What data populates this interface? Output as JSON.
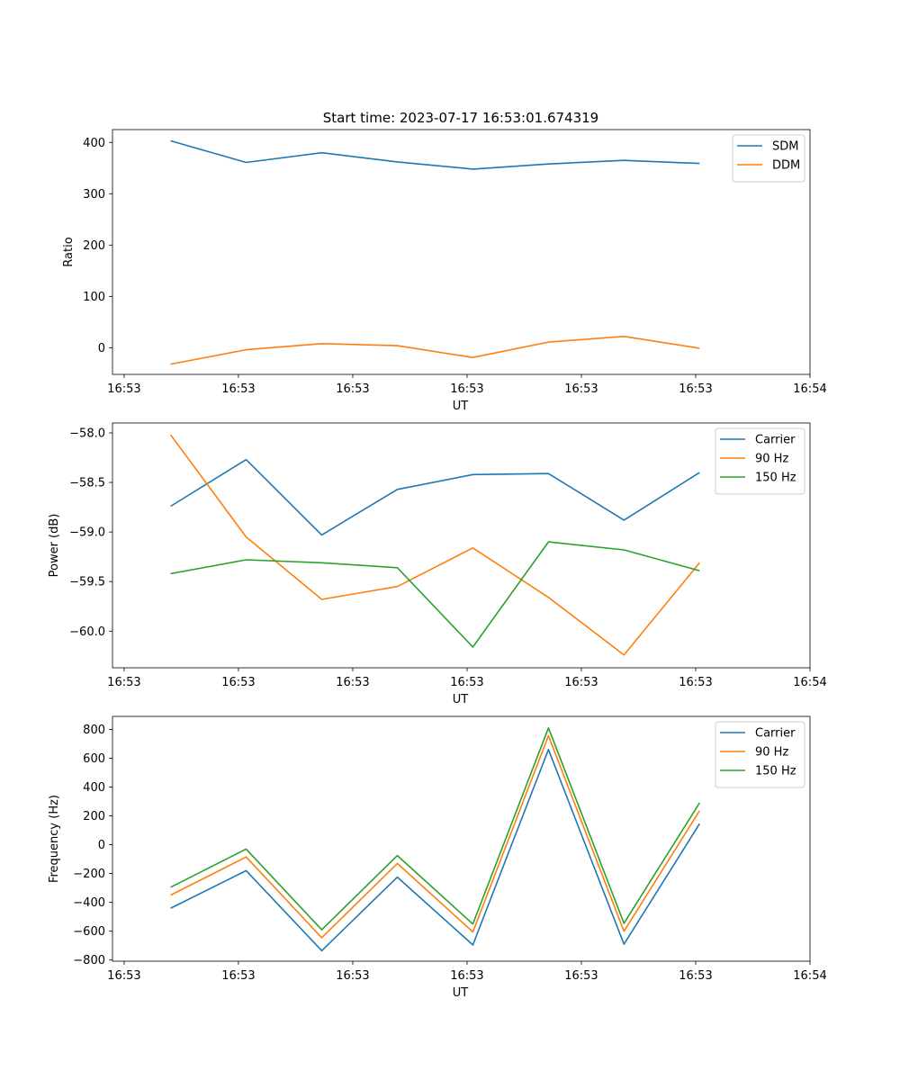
{
  "figure": {
    "title": "Start time: 2023-07-17 16:53:01.674319"
  },
  "chart_data": [
    {
      "type": "line",
      "title": "Start time: 2023-07-17 16:53:01.674319",
      "xlabel": "UT",
      "ylabel": "Ratio",
      "x_ticks": [
        "16:53",
        "16:53",
        "16:53",
        "16:53",
        "16:53",
        "16:53",
        "16:54"
      ],
      "xlim": [
        0,
        12
      ],
      "x": [
        1,
        2.3,
        3.6,
        4.9,
        6.2,
        7.5,
        8.8,
        10.1
      ],
      "ylim": [
        -52,
        425
      ],
      "y_ticks": [
        0,
        100,
        200,
        300,
        400
      ],
      "y_tick_labels": [
        "0",
        "100",
        "200",
        "300",
        "400"
      ],
      "legend": "top-right",
      "series": [
        {
          "name": "SDM",
          "color": "#1f77b4",
          "values": [
            403,
            361,
            380,
            362,
            348,
            358,
            365,
            359
          ]
        },
        {
          "name": "DDM",
          "color": "#ff7f0e",
          "values": [
            -32,
            -4,
            8,
            4,
            -19,
            11,
            22,
            -1
          ]
        }
      ]
    },
    {
      "type": "line",
      "xlabel": "UT",
      "ylabel": "Power (dB)",
      "x_ticks": [
        "16:53",
        "16:53",
        "16:53",
        "16:53",
        "16:53",
        "16:53",
        "16:54"
      ],
      "xlim": [
        0,
        12
      ],
      "x": [
        1,
        2.3,
        3.6,
        4.9,
        6.2,
        7.5,
        8.8,
        10.1
      ],
      "ylim": [
        -60.37,
        -57.9
      ],
      "y_ticks": [
        -60.0,
        -59.5,
        -59.0,
        -58.5,
        -58.0
      ],
      "y_tick_labels": [
        "−60.0",
        "−59.5",
        "−59.0",
        "−58.5",
        "−58.0"
      ],
      "legend": "top-right",
      "series": [
        {
          "name": "Carrier",
          "color": "#1f77b4",
          "values": [
            -58.74,
            -58.27,
            -59.03,
            -58.57,
            -58.42,
            -58.41,
            -58.88,
            -58.4
          ]
        },
        {
          "name": "90 Hz",
          "color": "#ff7f0e",
          "values": [
            -58.02,
            -59.05,
            -59.68,
            -59.55,
            -59.16,
            -59.66,
            -60.24,
            -59.31
          ]
        },
        {
          "name": "150 Hz",
          "color": "#2ca02c",
          "values": [
            -59.42,
            -59.28,
            -59.31,
            -59.36,
            -60.16,
            -59.1,
            -59.18,
            -59.39
          ]
        }
      ]
    },
    {
      "type": "line",
      "xlabel": "UT",
      "ylabel": "Frequency (Hz)",
      "x_ticks": [
        "16:53",
        "16:53",
        "16:53",
        "16:53",
        "16:53",
        "16:53",
        "16:54"
      ],
      "xlim": [
        0,
        12
      ],
      "x": [
        1,
        2.3,
        3.6,
        4.9,
        6.2,
        7.5,
        8.8,
        10.1
      ],
      "ylim": [
        -808,
        890
      ],
      "y_ticks": [
        -800,
        -600,
        -400,
        -200,
        0,
        200,
        400,
        600,
        800
      ],
      "y_tick_labels": [
        "−800",
        "−600",
        "−400",
        "−200",
        "0",
        "200",
        "400",
        "600",
        "800"
      ],
      "legend": "top-right",
      "series": [
        {
          "name": "Carrier",
          "color": "#1f77b4",
          "values": [
            -440,
            -180,
            -735,
            -225,
            -695,
            660,
            -690,
            145
          ]
        },
        {
          "name": "90 Hz",
          "color": "#ff7f0e",
          "values": [
            -350,
            -85,
            -645,
            -130,
            -605,
            755,
            -600,
            235
          ]
        },
        {
          "name": "150 Hz",
          "color": "#2ca02c",
          "values": [
            -295,
            -30,
            -590,
            -75,
            -550,
            810,
            -545,
            290
          ]
        }
      ]
    }
  ]
}
